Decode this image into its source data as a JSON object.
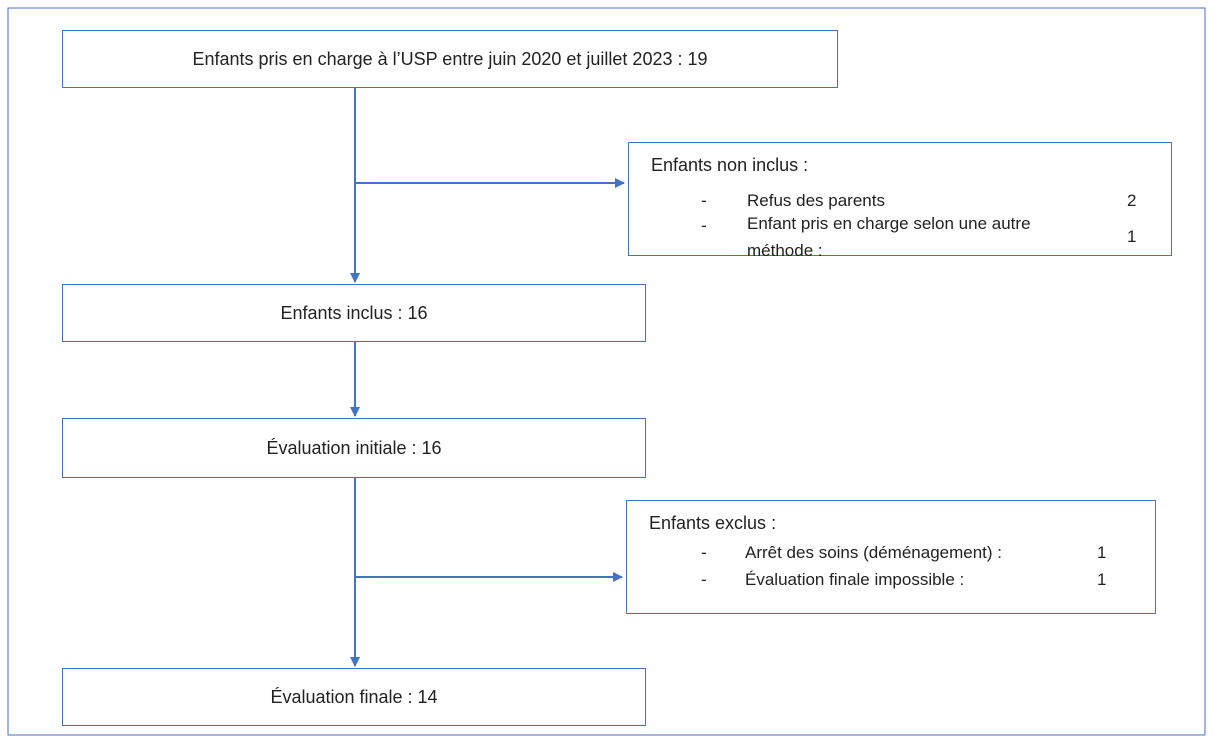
{
  "nodes": [
    {
      "label": "Enfants pris en charge à l’USP entre juin 2020 et juillet 2023 : 19"
    },
    {
      "label": "Enfants inclus : 16"
    },
    {
      "label": "Évaluation initiale : 16"
    },
    {
      "label": "Évaluation finale : 14"
    }
  ],
  "side_boxes": [
    {
      "title": "Enfants non inclus :",
      "items": [
        {
          "marker": "-",
          "label": "Refus des parents",
          "count": 2
        },
        {
          "marker": "-",
          "label": "Enfant pris en charge selon une autre méthode :",
          "count": 1
        }
      ]
    },
    {
      "title": "Enfants exclus :",
      "items": [
        {
          "marker": "-",
          "label": "Arrêt des soins (déménagement) :",
          "count": 1
        },
        {
          "marker": "-",
          "label": "Évaluation finale impossible :",
          "count": 1
        }
      ]
    }
  ]
}
